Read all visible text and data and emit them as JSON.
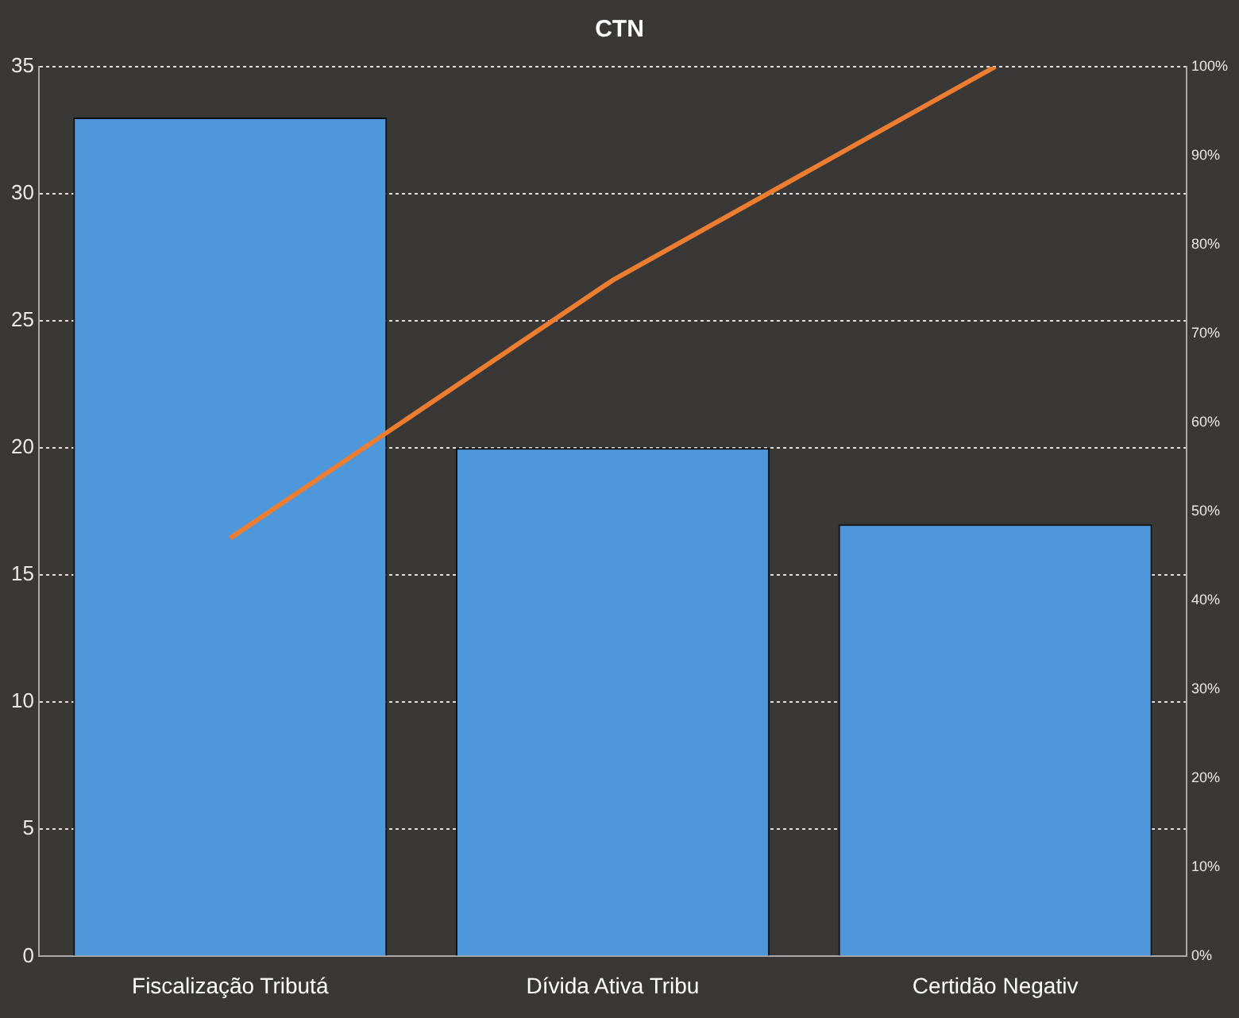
{
  "chart_data": {
    "type": "bar",
    "title": "CTN",
    "categories": [
      "Fiscalização Tributá",
      "Dívida Ativa Tribu",
      "Certidão Negativ"
    ],
    "series": [
      {
        "color": "#4f97db",
        "values": [
          33,
          20,
          17
        ]
      },
      {
        "type": "line",
        "axis": "y2",
        "color": "#ed7d31",
        "values": [
          47,
          76,
          100
        ]
      }
    ],
    "ylim": [
      0,
      35
    ],
    "yticks": [
      0,
      5,
      10,
      15,
      20,
      25,
      30,
      35
    ],
    "y2lim": [
      0,
      100
    ],
    "y2ticks": [
      {
        "value": 0,
        "label": "0%"
      },
      {
        "value": 10,
        "label": "10%"
      },
      {
        "value": 20,
        "label": "20%"
      },
      {
        "value": 30,
        "label": "30%"
      },
      {
        "value": 40,
        "label": "40%"
      },
      {
        "value": 50,
        "label": "50%"
      },
      {
        "value": 60,
        "label": "60%"
      },
      {
        "value": 70,
        "label": "70%"
      },
      {
        "value": 80,
        "label": "80%"
      },
      {
        "value": 90,
        "label": "90%"
      },
      {
        "value": 100,
        "label": "100%"
      }
    ],
    "grid": "y",
    "legend": false,
    "marker": "none",
    "line_style": "solid"
  }
}
